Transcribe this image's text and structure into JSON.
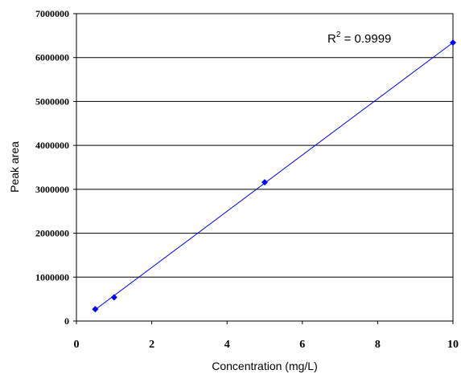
{
  "chart_data": {
    "type": "scatter",
    "xlabel": "Concentration (mg/L)",
    "ylabel": "Peak area",
    "xlim": [
      0,
      10
    ],
    "ylim": [
      0,
      7000000
    ],
    "x_ticks": [
      "0",
      "2",
      "4",
      "6",
      "8",
      "10"
    ],
    "y_ticks": [
      "0",
      "1000000",
      "2000000",
      "3000000",
      "4000000",
      "5000000",
      "6000000",
      "7000000"
    ],
    "grid": "horizontal",
    "series": [
      {
        "points": [
          {
            "x": 0.5,
            "y": 270000
          },
          {
            "x": 1,
            "y": 540000
          },
          {
            "x": 5,
            "y": 3160000
          },
          {
            "x": 10,
            "y": 6340000
          }
        ],
        "color": "#0000ff",
        "marker": "diamond"
      }
    ],
    "trendline": {
      "x": [
        0.5,
        10
      ],
      "y": [
        260000,
        6340000
      ],
      "color": "#0000ff"
    },
    "annotation": {
      "r_prefix": "R",
      "r_sup": "2",
      "r_value": " = 0.9999"
    }
  }
}
